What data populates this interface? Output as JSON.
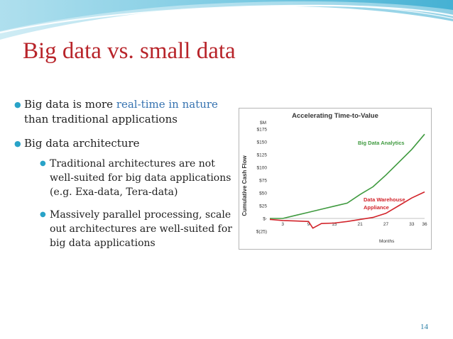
{
  "slide": {
    "title": "Big data vs. small data",
    "page_number": "14"
  },
  "bullets": {
    "b1_prefix": "Big data is more ",
    "b1_highlight": "real-time in nature",
    "b1_suffix": " than traditional applications",
    "b2": "Big data architecture",
    "b2_sub1": "Traditional architectures are not well-suited for big data applications (e.g. Exa-data, Tera-data)",
    "b2_sub2": "Massively parallel processing, scale out architectures are well-suited for big data applications"
  },
  "colors": {
    "title": "#b8242a",
    "bullet": "#29a3c8",
    "highlight": "#3572b0",
    "green_series": "#3f9a3f",
    "red_series": "#d2232a"
  },
  "chart_data": {
    "type": "line",
    "title": "Accelerating Time-to-Value",
    "unit_label": "$M",
    "ylabel": "Cumulative Cash Flow",
    "xlabel": "Months",
    "y_ticks": [
      "$175",
      "$150",
      "$125",
      "$100",
      "$75",
      "$50",
      "$25",
      "$-",
      "$(25)"
    ],
    "x_ticks": [
      "3",
      "9",
      "15",
      "21",
      "27",
      "33",
      "36"
    ],
    "ylim": [
      -25,
      175
    ],
    "xlim": [
      0,
      36
    ],
    "series": [
      {
        "name": "Big Data Analytics",
        "color": "#3f9a3f",
        "x": [
          0,
          3,
          6,
          9,
          12,
          15,
          18,
          21,
          24,
          27,
          30,
          33,
          36
        ],
        "y": [
          0,
          0,
          6,
          12,
          18,
          24,
          30,
          47,
          62,
          85,
          110,
          135,
          165
        ]
      },
      {
        "name": "Data Warehouse Appliance",
        "color": "#d2232a",
        "x": [
          0,
          3,
          6,
          9,
          10,
          12,
          15,
          18,
          21,
          24,
          27,
          30,
          33,
          36
        ],
        "y": [
          -2,
          -4,
          -5,
          -6,
          -19,
          -10,
          -9,
          -6,
          -2,
          2,
          10,
          25,
          40,
          52
        ]
      }
    ]
  }
}
